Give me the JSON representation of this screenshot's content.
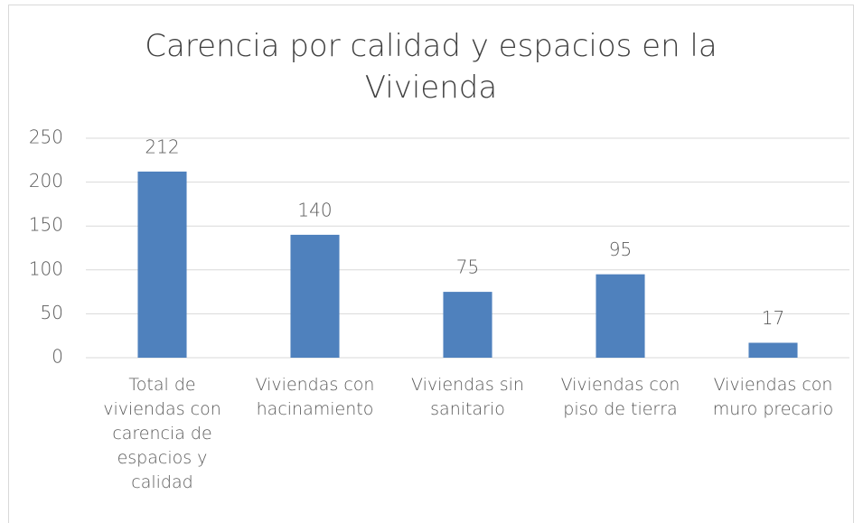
{
  "chart_data": {
    "type": "bar",
    "title": "Carencia por calidad y espacios en la Vivienda",
    "categories": [
      "Total de viviendas con carencia de espacios y calidad",
      "Viviendas con hacinamiento",
      "Viviendas sin sanitario",
      "Viviendas con piso de tierra",
      "Viviendas con muro precario"
    ],
    "values": [
      212,
      140,
      75,
      95,
      17
    ],
    "color": "#4f81bd",
    "ylim": [
      0,
      250
    ],
    "yticks": [
      0,
      50,
      100,
      150,
      200,
      250
    ],
    "grid": true
  }
}
